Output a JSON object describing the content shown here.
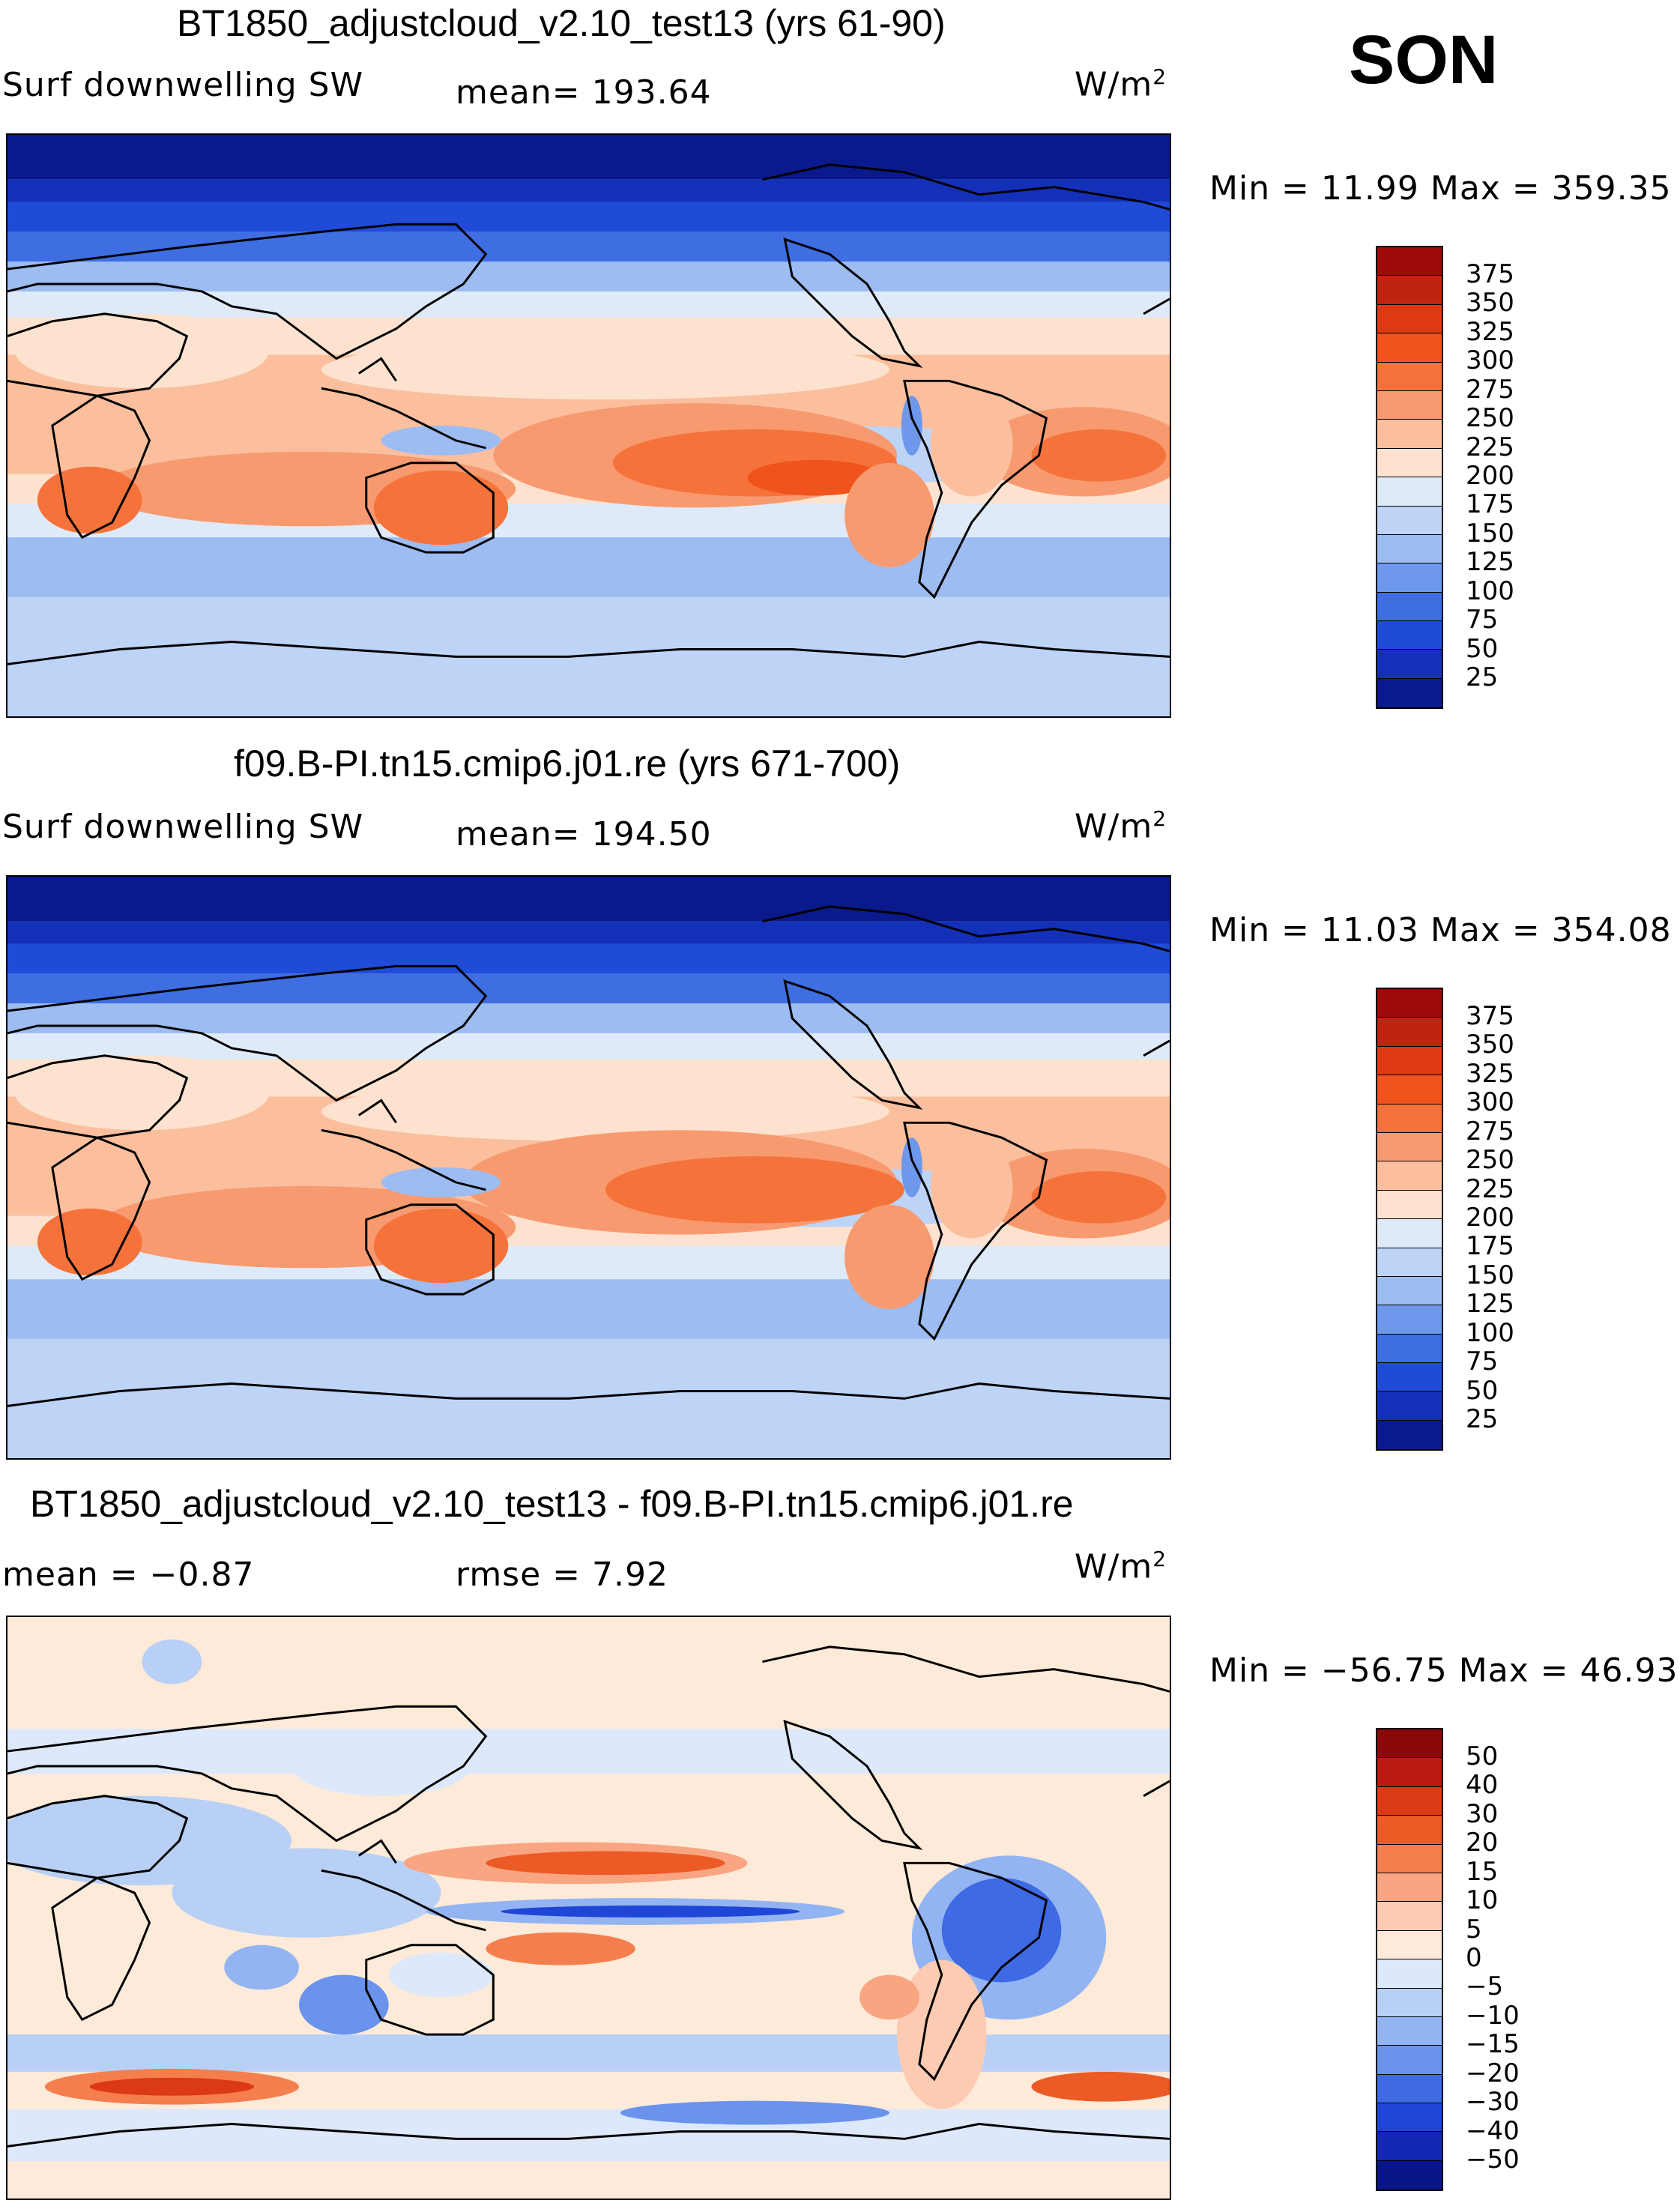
{
  "season": "SON",
  "units": "W/m",
  "units_sup": "2",
  "land_icon": "continent-outline",
  "panels": [
    {
      "title": "BT1850_adjustcloud_v2.10_test13 (yrs 61-90)",
      "variable": "Surf  downwelling  SW",
      "stat1": "mean=  193.64",
      "stat2": "",
      "minmax": "Min  =    11.99  Max  =  359.35",
      "scale": "abs",
      "colors": [
        "#9c0a0a",
        "#be2410",
        "#dd3a14",
        "#f0541c",
        "#f5733b",
        "#f89a70",
        "#fbbf9e",
        "#fde3cf",
        "#dfeaf8",
        "#bed4f6",
        "#9cbcf2",
        "#6d98ec",
        "#3f6ee2",
        "#1f4bd6",
        "#1430b8",
        "#0a1a8c"
      ],
      "ticks": [
        "375",
        "350",
        "325",
        "300",
        "275",
        "250",
        "225",
        "200",
        "175",
        "150",
        "125",
        "100",
        "75",
        "50",
        "25"
      ]
    },
    {
      "title": "f09.B-PI.tn15.cmip6.j01.re (yrs 671-700)",
      "variable": "Surf  downwelling  SW",
      "stat1": "mean=  194.50",
      "stat2": "",
      "minmax": "Min  =    11.03  Max  =  354.08",
      "scale": "abs",
      "colors": [
        "#9c0a0a",
        "#be2410",
        "#dd3a14",
        "#f0541c",
        "#f5733b",
        "#f89a70",
        "#fbbf9e",
        "#fde3cf",
        "#dfeaf8",
        "#bed4f6",
        "#9cbcf2",
        "#6d98ec",
        "#3f6ee2",
        "#1f4bd6",
        "#1430b8",
        "#0a1a8c"
      ],
      "ticks": [
        "375",
        "350",
        "325",
        "300",
        "275",
        "250",
        "225",
        "200",
        "175",
        "150",
        "125",
        "100",
        "75",
        "50",
        "25"
      ]
    },
    {
      "title": "BT1850_adjustcloud_v2.10_test13 - f09.B-PI.tn15.cmip6.j01.re",
      "variable": "mean  =    −0.87",
      "stat1": "rmse  =     7.92",
      "stat2": "",
      "minmax": "Min  =  −56.75  Max  =    46.93",
      "scale": "diff",
      "colors": [
        "#8a0a0a",
        "#b81a10",
        "#dc3a14",
        "#ec5a26",
        "#f57e4e",
        "#f9a581",
        "#fccbb2",
        "#fdead9",
        "#dde9fa",
        "#b9d0f6",
        "#93b4f2",
        "#6a93ec",
        "#3e6ae4",
        "#1f46d6",
        "#1228b2",
        "#081688"
      ],
      "ticks": [
        "50",
        "40",
        "30",
        "20",
        "15",
        "10",
        "5",
        "0",
        "−5",
        "−10",
        "−15",
        "−20",
        "−30",
        "−40",
        "−50"
      ]
    }
  ]
}
